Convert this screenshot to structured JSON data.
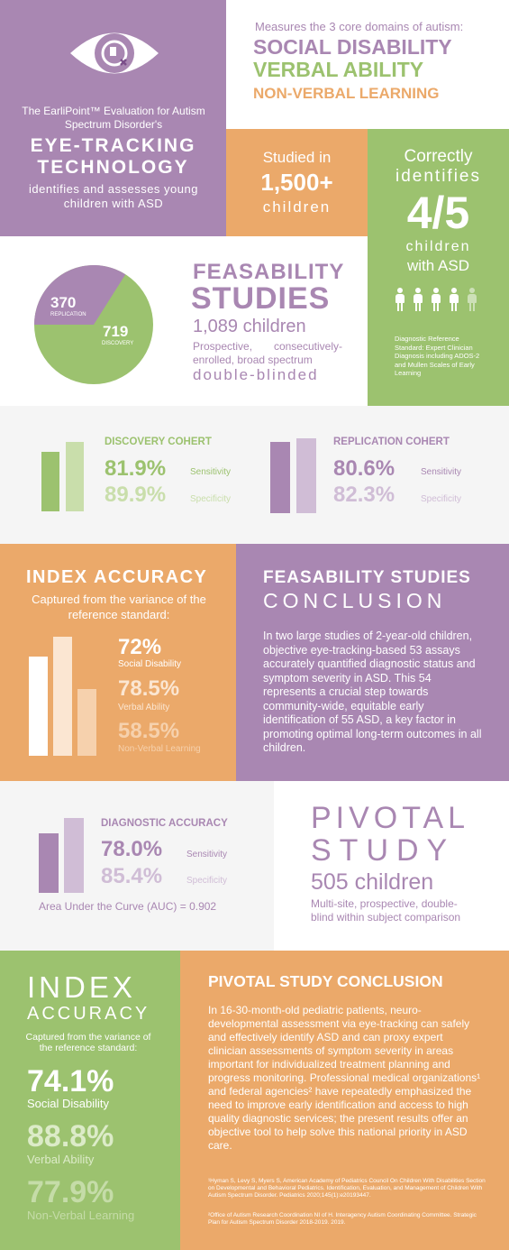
{
  "colors": {
    "purple": "#a987b2",
    "green": "#9cc26f",
    "orange": "#eba96a",
    "lavender": "#d0bdd6",
    "light_green": "#c9deab",
    "gray": "#f5f5f5"
  },
  "hero": {
    "icon": "eye-logo-icon",
    "intro": "The EarliPoint™ Evaluation for Autism Spectrum Disorder's",
    "headline_1": "EYE-TRACKING",
    "headline_2": "TECHNOLOGY",
    "sub": "identifies and assesses young children with ASD"
  },
  "domains": {
    "intro": "Measures the 3 core domains of autism:",
    "d1": "SOCIAL DISABILITY",
    "d2": "VERBAL ABILITY",
    "d3": "NON-VERBAL LEARNING"
  },
  "studied": {
    "l1": "Studied in",
    "num": "1,500+",
    "l2": "children"
  },
  "identifies": {
    "l1": "Correctly",
    "l2": "identifies",
    "num": "4/5",
    "l3": "children",
    "l4": "with ASD",
    "highlighted": 4,
    "total": 5,
    "note": "Diagnostic Reference Standard: Expert Clinician Diagnosis including ADOS-2 and Mullen Scales of Early Learning"
  },
  "feasibility": {
    "title_1": "FEASABILITY",
    "title_2": "STUDIES",
    "count": "1,089 children",
    "desc": "Prospective, consecutively-enrolled, broad spectrum",
    "blinded": "double-blinded",
    "pie": {
      "replication_value": "370",
      "replication_label": "REPLICATION",
      "discovery_value": "719",
      "discovery_label": "DISCOVERY",
      "replication": 370,
      "discovery": 719
    }
  },
  "cohorts": {
    "discovery": {
      "title": "DISCOVERY COHERT",
      "sens": "81.9%",
      "sens_label": "Sensitivity",
      "spec": "89.9%",
      "spec_label": "Specificity",
      "sens_value": 81.9,
      "spec_value": 89.9
    },
    "replication": {
      "title": "REPLICATION COHERT",
      "sens": "80.6%",
      "sens_label": "Sensitivity",
      "spec": "82.3%",
      "spec_label": "Specificity",
      "sens_value": 80.6,
      "spec_value": 82.3
    }
  },
  "index1": {
    "title": "INDEX ACCURACY",
    "sub": "Captured from the variance of the reference standard:",
    "v1": "72%",
    "l1": "Social Disability",
    "v2": "78.5%",
    "l2": "Verbal Ability",
    "v3": "58.5%",
    "l3": "Non-Verbal Learning",
    "values": [
      72,
      78.5,
      58.5
    ]
  },
  "conclusion1": {
    "title_1": "FEASABILITY STUDIES",
    "title_2": "CONCLUSION",
    "body": "In two large studies of 2-year-old children, objective eye-tracking-based 53 assays accurately quantified diagnostic status and symptom severity in ASD. This 54 represents a crucial step towards community-wide, equitable early identification of 55 ASD, a key factor in promoting optimal long-term outcomes in all children."
  },
  "diagnostic": {
    "title": "DIAGNOSTIC ACCURACY",
    "sens": "78.0%",
    "sens_label": "Sensitivity",
    "spec": "85.4%",
    "spec_label": "Specificity",
    "auc": "Area Under the Curve (AUC) = 0.902",
    "sens_value": 78.0,
    "spec_value": 85.4
  },
  "pivotal": {
    "t1": "PIVOTAL",
    "t2": "STUDY",
    "count": "505 children",
    "desc": "Multi-site, prospective, double-blind within subject comparison"
  },
  "index2": {
    "t1": "INDEX",
    "t2": "ACCURACY",
    "sub": "Captured from the variance of the reference standard:",
    "v1": "74.1%",
    "l1": "Social Disability",
    "v2": "88.8%",
    "l2": "Verbal Ability",
    "v3": "77.9%",
    "l3": "Non-Verbal Learning"
  },
  "conclusion2": {
    "title": "PIVOTAL STUDY CONCLUSION",
    "body": "In 16-30-month-old pediatric patients, neuro-developmental assessment via eye-tracking can safely and effectively identify ASD and can proxy expert clinician assessments of symptom severity in areas important for individualized treatment planning and progress monitoring. Professional medical organizations¹ and federal agencies² have repeatedly emphasized the need to improve early identification and access to high quality diagnostic services; the present results offer an objective tool to help solve this national priority in ASD care.",
    "ref1": "¹Hyman S, Levy S, Myers S, American Academy of Pediatrics Council On Children With Disabilities Section on Developmental and Behavioral Pediatrics. Identification, Evaluation, and Management of Children With Autism Spectrum Disorder. Pediatrics 2020;145(1):e20193447.",
    "ref2": "²Office of Autism Research Coordination NI of H. Interagency Autism Coordinating Committee. Strategic Plan for Autism Spectrum Disorder 2018-2019. 2019."
  }
}
